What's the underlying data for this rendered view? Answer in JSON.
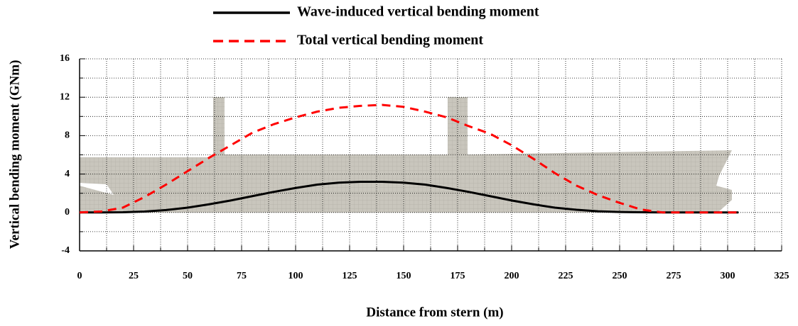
{
  "chart_data": {
    "type": "line",
    "xlabel": "Distance from stern (m)",
    "ylabel": "Vertical bending moment (GNm)",
    "x": [
      0,
      10,
      20,
      30,
      40,
      50,
      60,
      70,
      80,
      90,
      100,
      110,
      120,
      130,
      140,
      150,
      160,
      170,
      180,
      190,
      200,
      210,
      220,
      230,
      240,
      250,
      260,
      270,
      280,
      290,
      300,
      305
    ],
    "series": [
      {
        "name": "Wave-induced vertical bending moment",
        "color": "#000000",
        "dash": "solid",
        "values": [
          0,
          0,
          0.02,
          0.1,
          0.25,
          0.5,
          0.85,
          1.25,
          1.7,
          2.15,
          2.55,
          2.9,
          3.1,
          3.2,
          3.2,
          3.1,
          2.9,
          2.55,
          2.15,
          1.7,
          1.25,
          0.85,
          0.5,
          0.28,
          0.12,
          0.05,
          0.02,
          0,
          0,
          0,
          0,
          0
        ]
      },
      {
        "name": "Total vertical bending moment",
        "color": "#ff0000",
        "dash": "dashed",
        "values": [
          0,
          0.1,
          0.5,
          1.6,
          2.9,
          4.3,
          5.7,
          7.0,
          8.3,
          9.2,
          9.9,
          10.5,
          10.9,
          11.1,
          11.2,
          11.0,
          10.5,
          9.9,
          9.0,
          8.2,
          7.0,
          5.6,
          4.1,
          2.8,
          1.8,
          1.0,
          0.3,
          0,
          0,
          0,
          0,
          0
        ]
      }
    ],
    "xlim": [
      0,
      325
    ],
    "xticks": [
      0,
      25,
      50,
      75,
      100,
      125,
      150,
      175,
      200,
      225,
      250,
      275,
      300,
      325
    ],
    "xminorticks": [
      12.5,
      37.5,
      62.5,
      87.5,
      112.5,
      137.5,
      162.5,
      187.5,
      212.5,
      237.5,
      262.5,
      287.5,
      312.5
    ],
    "ylim": [
      -4,
      16
    ],
    "yticks": [
      -4,
      0,
      4,
      8,
      12,
      16
    ],
    "yminorticks": [
      -2,
      2,
      6,
      10,
      14
    ],
    "grid": true,
    "legend": "top"
  }
}
